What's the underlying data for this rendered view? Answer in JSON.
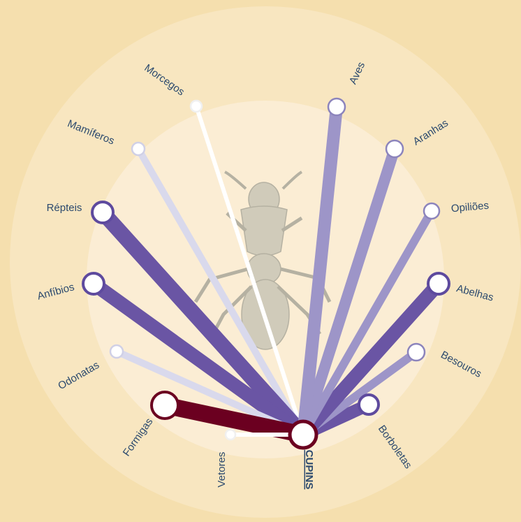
{
  "center": {
    "label": "CUPINS"
  },
  "nodes": [
    {
      "label": "Morcegos"
    },
    {
      "label": "Mamíferos"
    },
    {
      "label": "Répteis"
    },
    {
      "label": "Anfíbios"
    },
    {
      "label": "Odonatas"
    },
    {
      "label": "Formigas"
    },
    {
      "label": "Vetores"
    },
    {
      "label": "Borboletas"
    },
    {
      "label": "Besouros"
    },
    {
      "label": "Abelhas"
    },
    {
      "label": "Opiliões"
    },
    {
      "label": "Aranhas"
    },
    {
      "label": "Aves"
    }
  ]
}
